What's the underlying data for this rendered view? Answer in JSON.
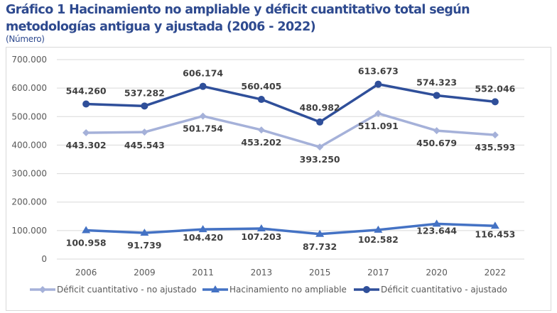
{
  "chart_data": {
    "type": "line",
    "title": "Gráfico 1 Hacinamiento no ampliable y déficit cuantitativo total según metodologías antigua y ajustada (2006 - 2022)",
    "subtitle": "(Número)",
    "xlabel": "",
    "ylabel": "",
    "categories": [
      "2006",
      "2009",
      "2011",
      "2013",
      "2015",
      "2017",
      "2020",
      "2022"
    ],
    "ylim": [
      0,
      700000
    ],
    "yticks": [
      0,
      100000,
      200000,
      300000,
      400000,
      500000,
      600000,
      700000
    ],
    "ytick_labels": [
      "0",
      "100.000",
      "200.000",
      "300.000",
      "400.000",
      "500.000",
      "600.000",
      "700.000"
    ],
    "grid": true,
    "legend_position": "bottom",
    "series": [
      {
        "name": "Déficit cuantitativo - no ajustado",
        "marker": "diamond",
        "color": "#a5b1d9",
        "label_position": "below",
        "values": [
          443302,
          445543,
          501754,
          453202,
          393250,
          511091,
          450679,
          435593
        ],
        "labels": [
          "443.302",
          "445.543",
          "501.754",
          "453.202",
          "393.250",
          "511.091",
          "450.679",
          "435.593"
        ]
      },
      {
        "name": "Hacinamiento no ampliable",
        "marker": "triangle",
        "color": "#4472c4",
        "label_position": "below",
        "values": [
          100958,
          91739,
          104420,
          107203,
          87732,
          102582,
          123644,
          116453
        ],
        "labels": [
          "100.958",
          "91.739",
          "104.420",
          "107.203",
          "87.732",
          "102.582",
          "123.644",
          "116.453"
        ]
      },
      {
        "name": "Déficit cuantitativo - ajustado",
        "marker": "circle",
        "color": "#2f4f9a",
        "label_position": "above",
        "values": [
          544260,
          537282,
          606174,
          560405,
          480982,
          613673,
          574323,
          552046
        ],
        "labels": [
          "544.260",
          "537.282",
          "606.174",
          "560.405",
          "480.982",
          "613.673",
          "574.323",
          "552.046"
        ]
      }
    ]
  }
}
